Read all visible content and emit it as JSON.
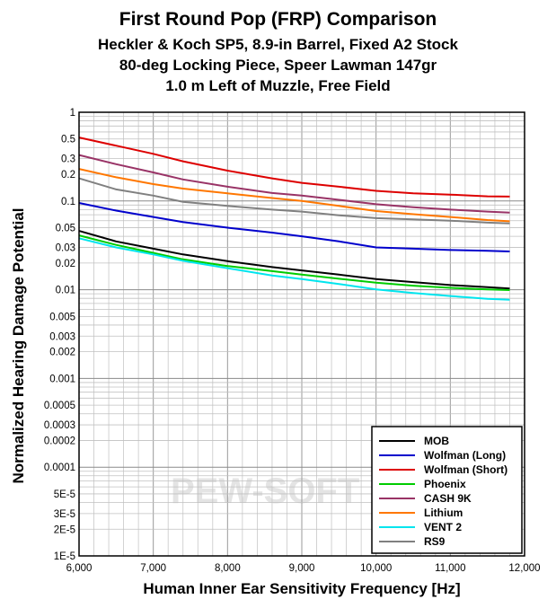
{
  "chart_data": {
    "type": "line",
    "title_lines": [
      "First Round Pop (FRP) Comparison",
      "Heckler & Koch SP5, 8.9-in Barrel, Fixed A2 Stock",
      "80-deg Locking Piece, Speer Lawman 147gr",
      "1.0 m Left of Muzzle, Free Field"
    ],
    "xlabel": "Human Inner Ear Sensitivity Frequency [Hz]",
    "ylabel": "Normalized Hearing Damage Potential",
    "xlim": [
      6000,
      12000
    ],
    "ylim": [
      1e-05,
      1
    ],
    "yscale": "log",
    "grid": true,
    "x_ticks": [
      "6,000",
      "7,000",
      "8,000",
      "9,000",
      "10,000",
      "11,000",
      "12,000"
    ],
    "y_ticks": [
      {
        "v": 1,
        "label": "1"
      },
      {
        "v": 0.5,
        "label": "0.5"
      },
      {
        "v": 0.3,
        "label": "0.3"
      },
      {
        "v": 0.2,
        "label": "0.2"
      },
      {
        "v": 0.1,
        "label": "0.1"
      },
      {
        "v": 0.05,
        "label": "0.05"
      },
      {
        "v": 0.03,
        "label": "0.03"
      },
      {
        "v": 0.02,
        "label": "0.02"
      },
      {
        "v": 0.01,
        "label": "0.01"
      },
      {
        "v": 0.005,
        "label": "0.005"
      },
      {
        "v": 0.003,
        "label": "0.003"
      },
      {
        "v": 0.002,
        "label": "0.002"
      },
      {
        "v": 0.001,
        "label": "0.001"
      },
      {
        "v": 0.0005,
        "label": "0.0005"
      },
      {
        "v": 0.0003,
        "label": "0.0003"
      },
      {
        "v": 0.0002,
        "label": "0.0002"
      },
      {
        "v": 0.0001,
        "label": "0.0001"
      },
      {
        "v": 5e-05,
        "label": "5E-5"
      },
      {
        "v": 3e-05,
        "label": "3E-5"
      },
      {
        "v": 2e-05,
        "label": "2E-5"
      },
      {
        "v": 1e-05,
        "label": "1E-5"
      }
    ],
    "legend_position": "bottom-right",
    "x": [
      6000,
      6500,
      7000,
      7400,
      8000,
      8600,
      9000,
      9500,
      10000,
      10500,
      11000,
      11500,
      11800
    ],
    "series": [
      {
        "name": "MOB",
        "color": "#000000",
        "values": [
          0.046,
          0.035,
          0.029,
          0.025,
          0.021,
          0.018,
          0.0165,
          0.0148,
          0.0132,
          0.0122,
          0.0113,
          0.0107,
          0.0103
        ]
      },
      {
        "name": "Wolfman (Long)",
        "color": "#0000cc",
        "values": [
          0.095,
          0.078,
          0.066,
          0.058,
          0.05,
          0.044,
          0.04,
          0.035,
          0.03,
          0.029,
          0.028,
          0.0275,
          0.027
        ]
      },
      {
        "name": "Wolfman (Short)",
        "color": "#dd0000",
        "values": [
          0.52,
          0.42,
          0.34,
          0.28,
          0.22,
          0.18,
          0.16,
          0.145,
          0.13,
          0.122,
          0.118,
          0.113,
          0.112
        ]
      },
      {
        "name": "Phoenix",
        "color": "#00cc00",
        "values": [
          0.041,
          0.032,
          0.026,
          0.022,
          0.0185,
          0.0162,
          0.0148,
          0.0133,
          0.012,
          0.0111,
          0.0105,
          0.0101,
          0.0099
        ]
      },
      {
        "name": "CASH 9K",
        "color": "#993366",
        "values": [
          0.33,
          0.26,
          0.21,
          0.175,
          0.145,
          0.123,
          0.115,
          0.103,
          0.092,
          0.085,
          0.08,
          0.076,
          0.074
        ]
      },
      {
        "name": "Lithium",
        "color": "#ff7700",
        "values": [
          0.23,
          0.185,
          0.155,
          0.138,
          0.122,
          0.108,
          0.1,
          0.088,
          0.077,
          0.071,
          0.066,
          0.061,
          0.059
        ]
      },
      {
        "name": "VENT 2",
        "color": "#00e5ee",
        "values": [
          0.038,
          0.03,
          0.025,
          0.0212,
          0.0175,
          0.0145,
          0.0132,
          0.0116,
          0.0101,
          0.0092,
          0.0085,
          0.0079,
          0.0077
        ]
      },
      {
        "name": "RS9",
        "color": "#808080",
        "values": [
          0.18,
          0.135,
          0.115,
          0.098,
          0.088,
          0.08,
          0.076,
          0.069,
          0.064,
          0.062,
          0.06,
          0.057,
          0.056
        ]
      }
    ],
    "watermark": "PEW-SOFT"
  }
}
